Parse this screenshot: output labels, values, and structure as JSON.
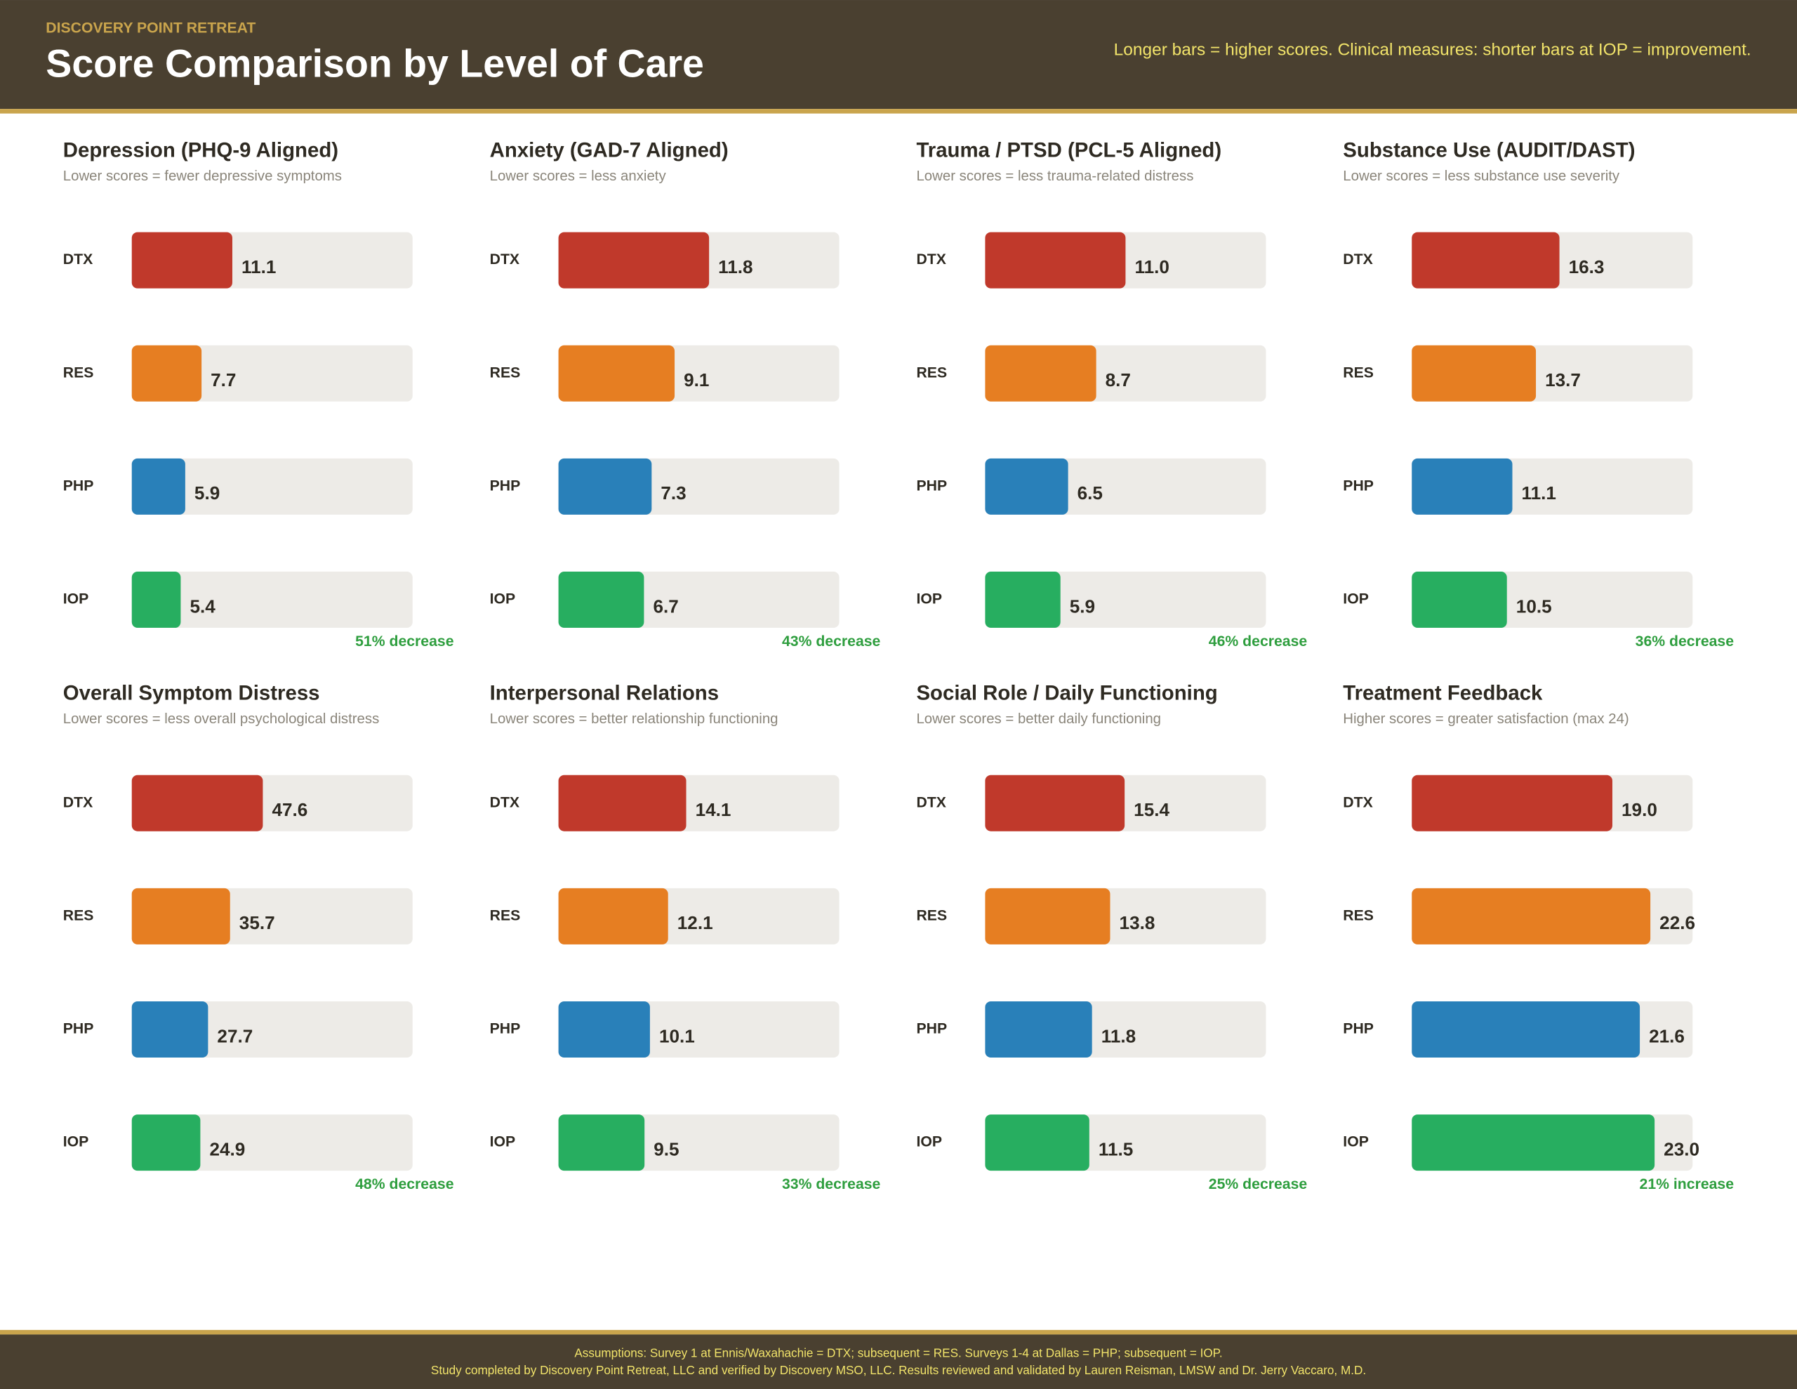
{
  "header": {
    "eyebrow": "DISCOVERY POINT RETREAT",
    "title": "Score Comparison by Level of Care",
    "note": "Longer bars = higher scores. Clinical measures: shorter bars at IOP = improvement."
  },
  "chart_data": [
    {
      "type": "bar",
      "orientation": "horizontal",
      "title": "Depression (PHQ-9 Aligned)",
      "subtitle": "Lower scores = fewer depressive symptoms",
      "categories": [
        "DTX",
        "RES",
        "PHP",
        "IOP"
      ],
      "values": [
        11.1,
        7.7,
        5.9,
        5.4
      ],
      "value_labels": [
        "11.1",
        "7.7",
        "5.9",
        "5.4"
      ],
      "colors": [
        "#c0392b",
        "#e67e22",
        "#2980b9",
        "#27ae60"
      ],
      "xlim": [
        0,
        31
      ],
      "change": "51% decrease"
    },
    {
      "type": "bar",
      "orientation": "horizontal",
      "title": "Anxiety (GAD-7 Aligned)",
      "subtitle": "Lower scores = less anxiety",
      "categories": [
        "DTX",
        "RES",
        "PHP",
        "IOP"
      ],
      "values": [
        11.8,
        9.1,
        7.3,
        6.7
      ],
      "value_labels": [
        "11.8",
        "9.1",
        "7.3",
        "6.7"
      ],
      "colors": [
        "#c0392b",
        "#e67e22",
        "#2980b9",
        "#27ae60"
      ],
      "xlim": [
        0,
        22
      ],
      "change": "43% decrease"
    },
    {
      "type": "bar",
      "orientation": "horizontal",
      "title": "Trauma / PTSD (PCL-5 Aligned)",
      "subtitle": "Lower scores = less trauma-related distress",
      "categories": [
        "DTX",
        "RES",
        "PHP",
        "IOP"
      ],
      "values": [
        11.0,
        8.7,
        6.5,
        5.9
      ],
      "value_labels": [
        "11.0",
        "8.7",
        "6.5",
        "5.9"
      ],
      "colors": [
        "#c0392b",
        "#e67e22",
        "#2980b9",
        "#27ae60"
      ],
      "xlim": [
        0,
        22
      ],
      "change": "46% decrease"
    },
    {
      "type": "bar",
      "orientation": "horizontal",
      "title": "Substance Use (AUDIT/DAST)",
      "subtitle": "Lower scores = less substance use severity",
      "categories": [
        "DTX",
        "RES",
        "PHP",
        "IOP"
      ],
      "values": [
        16.3,
        13.7,
        11.1,
        10.5
      ],
      "value_labels": [
        "16.3",
        "13.7",
        "11.1",
        "10.5"
      ],
      "colors": [
        "#c0392b",
        "#e67e22",
        "#2980b9",
        "#27ae60"
      ],
      "xlim": [
        0,
        31
      ],
      "change": "36% decrease"
    },
    {
      "type": "bar",
      "orientation": "horizontal",
      "title": "Overall Symptom Distress",
      "subtitle": "Lower scores = less overall psychological distress",
      "categories": [
        "DTX",
        "RES",
        "PHP",
        "IOP"
      ],
      "values": [
        47.6,
        35.7,
        27.7,
        24.9
      ],
      "value_labels": [
        "47.6",
        "35.7",
        "27.7",
        "24.9"
      ],
      "colors": [
        "#c0392b",
        "#e67e22",
        "#2980b9",
        "#27ae60"
      ],
      "xlim": [
        0,
        102
      ],
      "change": "48% decrease"
    },
    {
      "type": "bar",
      "orientation": "horizontal",
      "title": "Interpersonal Relations",
      "subtitle": "Lower scores = better relationship functioning",
      "categories": [
        "DTX",
        "RES",
        "PHP",
        "IOP"
      ],
      "values": [
        14.1,
        12.1,
        10.1,
        9.5
      ],
      "value_labels": [
        "14.1",
        "12.1",
        "10.1",
        "9.5"
      ],
      "colors": [
        "#c0392b",
        "#e67e22",
        "#2980b9",
        "#27ae60"
      ],
      "xlim": [
        0,
        31
      ],
      "change": "33% decrease"
    },
    {
      "type": "bar",
      "orientation": "horizontal",
      "title": "Social Role / Daily Functioning",
      "subtitle": "Lower scores = better daily functioning",
      "categories": [
        "DTX",
        "RES",
        "PHP",
        "IOP"
      ],
      "values": [
        15.4,
        13.8,
        11.8,
        11.5
      ],
      "value_labels": [
        "15.4",
        "13.8",
        "11.8",
        "11.5"
      ],
      "colors": [
        "#c0392b",
        "#e67e22",
        "#2980b9",
        "#27ae60"
      ],
      "xlim": [
        0,
        31
      ],
      "change": "25% decrease"
    },
    {
      "type": "bar",
      "orientation": "horizontal",
      "title": "Treatment Feedback",
      "subtitle": "Higher scores = greater satisfaction (max 24)",
      "categories": [
        "DTX",
        "RES",
        "PHP",
        "IOP"
      ],
      "values": [
        19.0,
        22.6,
        21.6,
        23.0
      ],
      "value_labels": [
        "19.0",
        "22.6",
        "21.6",
        "23.0"
      ],
      "colors": [
        "#c0392b",
        "#e67e22",
        "#2980b9",
        "#27ae60"
      ],
      "xlim": [
        0,
        26.6
      ],
      "change": "21% increase"
    }
  ],
  "footer": {
    "lines": [
      "Assumptions: Survey 1 at Ennis/Waxahachie = DTX; subsequent = RES. Surveys 1-4 at Dallas = PHP; subsequent = IOP.",
      "Study completed by Discovery Point Retreat, LLC and verified by Discovery MSO, LLC. Results reviewed and validated by Lauren Reisman, LMSW and Dr. Jerry Vaccaro, M.D."
    ]
  }
}
